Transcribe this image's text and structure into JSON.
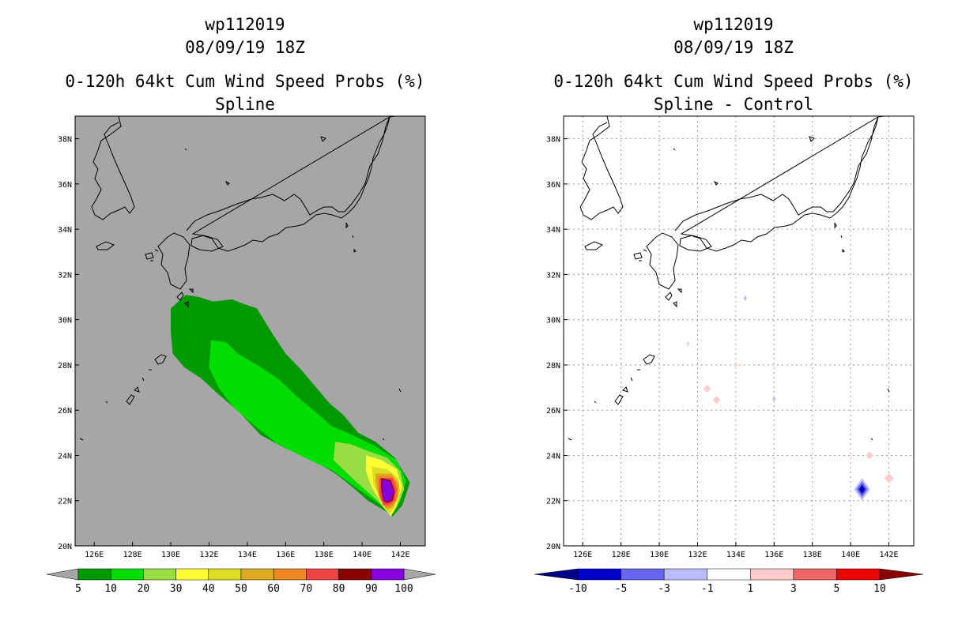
{
  "left_panel": {
    "title_line1": "wp112019",
    "title_line2": "08/09/19 18Z",
    "title_line3": "0-120h 64kt Cum Wind Speed Probs (%)",
    "title_line4": "Spline",
    "colorbar": {
      "labels": [
        "5",
        "10",
        "20",
        "30",
        "40",
        "50",
        "60",
        "70",
        "80",
        "90",
        "100"
      ],
      "colors": [
        "#009900",
        "#00dd00",
        "#99dd44",
        "#ffff33",
        "#dddd22",
        "#ddaa22",
        "#ee8822",
        "#ee4444",
        "#880000",
        "#8800dd"
      ],
      "background_color": "#a6a6a6"
    }
  },
  "right_panel": {
    "title_line1": "wp112019",
    "title_line2": "08/09/19 18Z",
    "title_line3": "0-120h 64kt Cum Wind Speed Probs (%)",
    "title_line4": "Spline - Control",
    "colorbar": {
      "labels": [
        "-10",
        "-5",
        "-3",
        "-1",
        "1",
        "3",
        "5",
        "10"
      ],
      "colors": [
        "#0000cc",
        "#6666ee",
        "#bbbbff",
        "#ffffff",
        "#ffcccc",
        "#ee6666",
        "#ee0000"
      ],
      "end_colors": [
        "#000088",
        "#880000"
      ]
    }
  },
  "axes": {
    "lon_ticks": [
      "126E",
      "128E",
      "130E",
      "132E",
      "134E",
      "136E",
      "138E",
      "140E",
      "142E"
    ],
    "lat_ticks": [
      "20N",
      "22N",
      "24N",
      "26N",
      "28N",
      "30N",
      "32N",
      "34N",
      "36N",
      "38N"
    ],
    "lon_range": [
      125,
      143.3
    ],
    "lat_range": [
      20,
      39
    ]
  }
}
